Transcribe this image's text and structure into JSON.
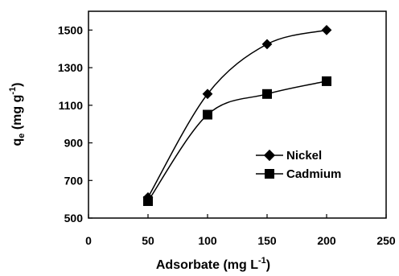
{
  "chart_data": {
    "type": "line",
    "title": "",
    "xlabel": {
      "main": "Adsorbate (mg L",
      "sup": "-1",
      "close": ")"
    },
    "ylabel": {
      "q": "q",
      "sub": "e",
      "unit": " (mg g",
      "sup": "-1",
      "close": ")"
    },
    "xlim": [
      0,
      250
    ],
    "ylim": [
      500,
      1600
    ],
    "xticks": [
      "0",
      "50",
      "100",
      "150",
      "200",
      "250"
    ],
    "yticks": [
      "500",
      "700",
      "900",
      "1100",
      "1300",
      "1500"
    ],
    "grid": false,
    "legend_position": "lower-right",
    "series": [
      {
        "name": "Nickel",
        "marker": "diamond",
        "color": "#000000",
        "x": [
          50,
          100,
          150,
          200
        ],
        "y": [
          610,
          1160,
          1425,
          1500
        ]
      },
      {
        "name": "Cadmium",
        "marker": "square",
        "color": "#000000",
        "x": [
          50,
          100,
          150,
          200
        ],
        "y": [
          590,
          1050,
          1160,
          1228
        ]
      }
    ]
  }
}
